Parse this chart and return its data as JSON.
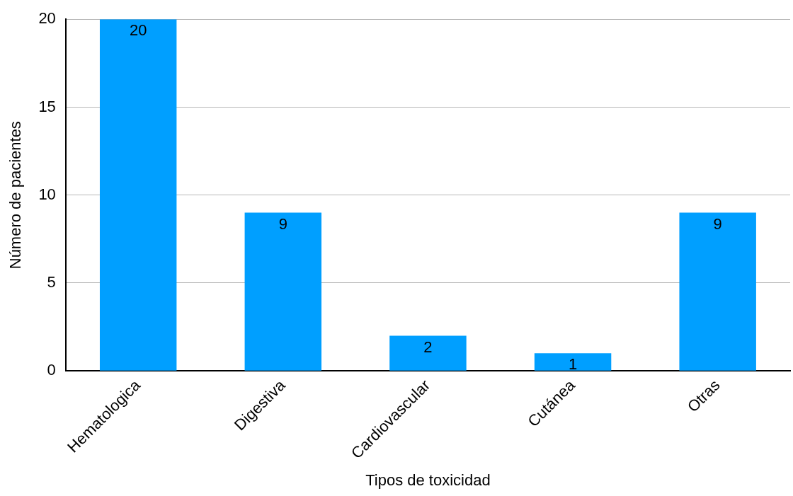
{
  "chart_data": {
    "type": "bar",
    "xlabel": "Tipos de toxicidad",
    "ylabel": "Número de pacientes",
    "categories": [
      "Hematologica",
      "Digestiva",
      "Cardiovascular",
      "Cutánea",
      "Otras"
    ],
    "values": [
      20,
      9,
      2,
      1,
      9
    ],
    "color": "#009fff",
    "ylim": [
      0,
      20
    ],
    "yticks": [
      0,
      5,
      10,
      15,
      20
    ],
    "grid": "y",
    "data_labels": true
  }
}
